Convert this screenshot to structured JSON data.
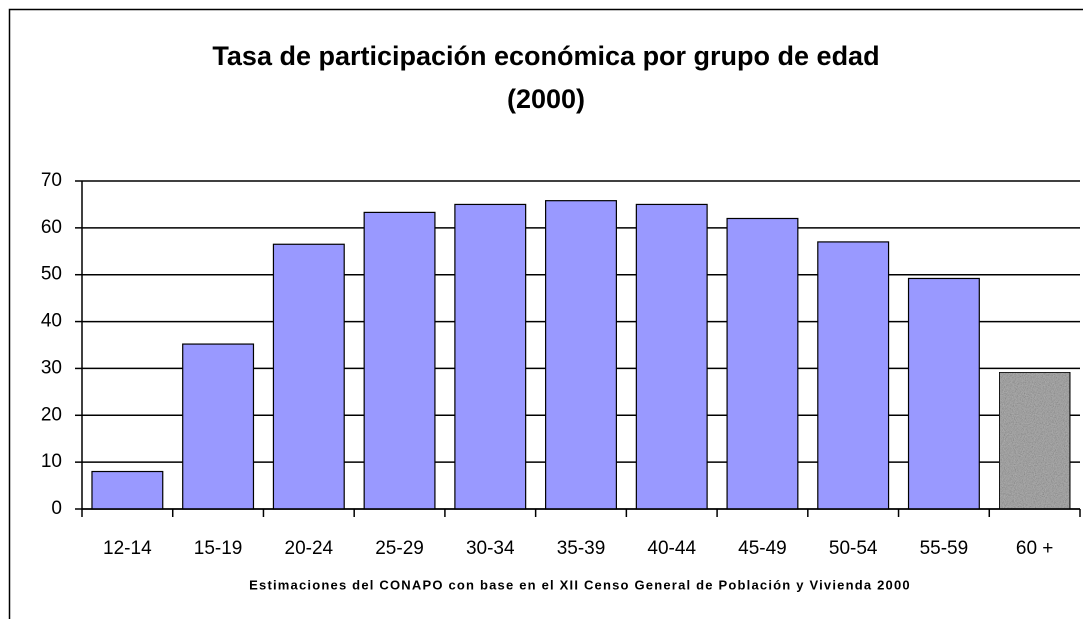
{
  "chart_data": {
    "type": "bar",
    "title_lines": [
      "Tasa de participación económica por grupo de edad",
      "(2000)"
    ],
    "note": "Estimaciones del CONAPO con base en el XII Censo General de Población y Vivienda  2000",
    "categories": [
      "12-14",
      "15-19",
      "20-24",
      "25-29",
      "30-34",
      "35-39",
      "40-44",
      "45-49",
      "50-54",
      "55-59",
      "60 +"
    ],
    "values": [
      8,
      35.2,
      56.5,
      63.3,
      65,
      65.8,
      65,
      62,
      57,
      49.2,
      29.2
    ],
    "colors": [
      "#9999ff",
      "#9999ff",
      "#9999ff",
      "#9999ff",
      "#9999ff",
      "#9999ff",
      "#9999ff",
      "#9999ff",
      "#9999ff",
      "#9999ff",
      "#b4b4b4"
    ],
    "ylim": [
      0,
      70
    ],
    "yticks": [
      0,
      10,
      20,
      30,
      40,
      50,
      60,
      70
    ],
    "grid": true
  }
}
